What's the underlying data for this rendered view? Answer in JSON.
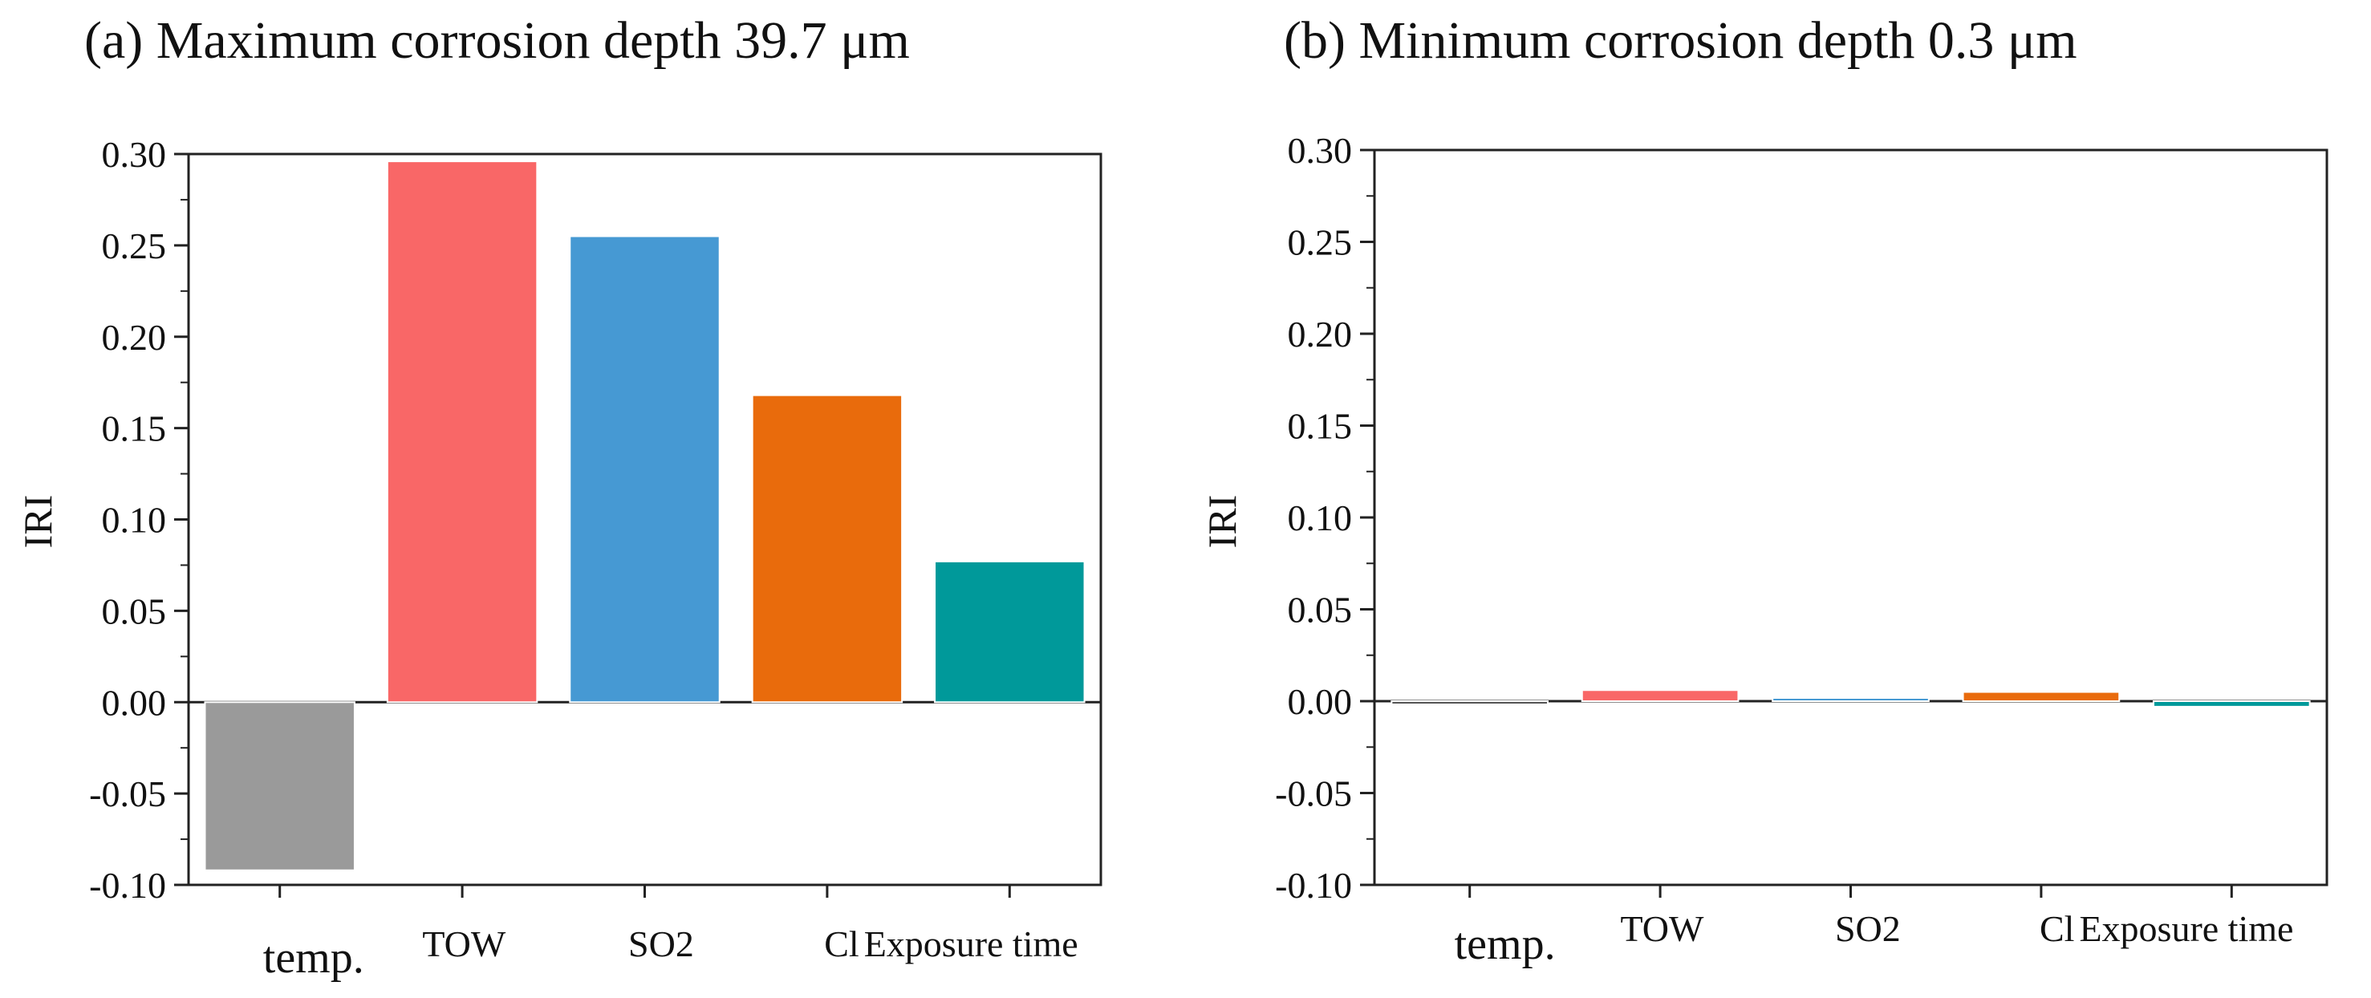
{
  "chart_data": [
    {
      "type": "bar",
      "title": "(a) Maximum corrosion depth 39.7 μm",
      "xlabel": "",
      "ylabel": "IRI",
      "categories": [
        "temp.",
        "TOW",
        "SO2",
        "Cl",
        "Exposure time"
      ],
      "values": [
        -0.092,
        0.296,
        0.255,
        0.168,
        0.077
      ],
      "colors": [
        "#9a9a9a",
        "#f96767",
        "#4699d3",
        "#e96b0c",
        "#00999a"
      ],
      "ylim": [
        -0.1,
        0.3
      ],
      "yticks": [
        "0.30",
        "0.25",
        "0.20",
        "0.15",
        "0.10",
        "0.05",
        "0.00",
        "-0.05",
        "-0.10"
      ],
      "grid": false
    },
    {
      "type": "bar",
      "title": "(b) Minimum corrosion depth 0.3 μm",
      "xlabel": "",
      "ylabel": "IRI",
      "categories": [
        "temp.",
        "TOW",
        "SO2",
        "Cl",
        "Exposure time"
      ],
      "values": [
        -0.001,
        0.006,
        0.001,
        0.005,
        -0.003
      ],
      "colors": [
        "#555555",
        "#f96767",
        "#4699d3",
        "#e96b0c",
        "#00999a"
      ],
      "ylim": [
        -0.1,
        0.3
      ],
      "yticks": [
        "0.30",
        "0.25",
        "0.20",
        "0.15",
        "0.10",
        "0.05",
        "0.00",
        "-0.05",
        "-0.10"
      ],
      "grid": false
    }
  ]
}
